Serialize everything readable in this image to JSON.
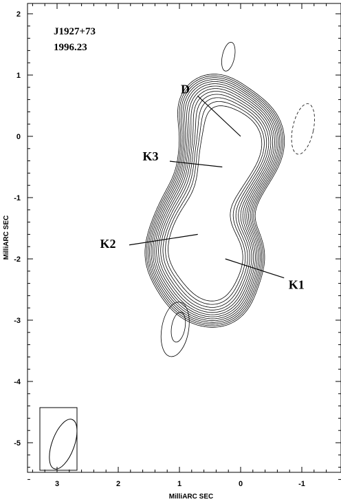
{
  "chart_data": {
    "type": "contour",
    "source_name": "J1927+73",
    "epoch": "1996.23",
    "xlabel": "MilliARC SEC",
    "ylabel": "MilliARC SEC",
    "xlim": [
      3.4,
      -1.6
    ],
    "ylim": [
      -5.6,
      2.1
    ],
    "xticks": [
      3,
      2,
      1,
      0,
      -1
    ],
    "yticks": [
      2,
      1,
      0,
      -1,
      -2,
      -3,
      -4,
      -5
    ],
    "components": [
      {
        "label": "D",
        "x": 0.0,
        "y": 0.0,
        "label_x": 0.95,
        "label_y": 0.75
      },
      {
        "label": "K3",
        "x": 0.3,
        "y": -0.5,
        "label_x": 1.45,
        "label_y": -0.35
      },
      {
        "label": "K2",
        "x": 0.7,
        "y": -1.6,
        "label_x": 2.0,
        "label_y": -1.75
      },
      {
        "label": "K1",
        "x": 0.25,
        "y": -2.0,
        "label_x": -0.8,
        "label_y": -2.4
      }
    ],
    "contours": {
      "main_levels": 13,
      "isolated_positive": [
        {
          "x": 0.2,
          "y": 1.3,
          "rx": 0.1,
          "ry": 0.24
        },
        {
          "x": 1.07,
          "y": -3.15,
          "rx": 0.22,
          "ry": 0.45
        }
      ],
      "negative": [
        {
          "x": -1.02,
          "y": 0.12,
          "rx": 0.17,
          "ry": 0.42
        }
      ]
    },
    "beam": {
      "x": 2.9,
      "y": -5.0,
      "major": 0.9,
      "minor": 0.32,
      "pa_deg": 20
    }
  }
}
